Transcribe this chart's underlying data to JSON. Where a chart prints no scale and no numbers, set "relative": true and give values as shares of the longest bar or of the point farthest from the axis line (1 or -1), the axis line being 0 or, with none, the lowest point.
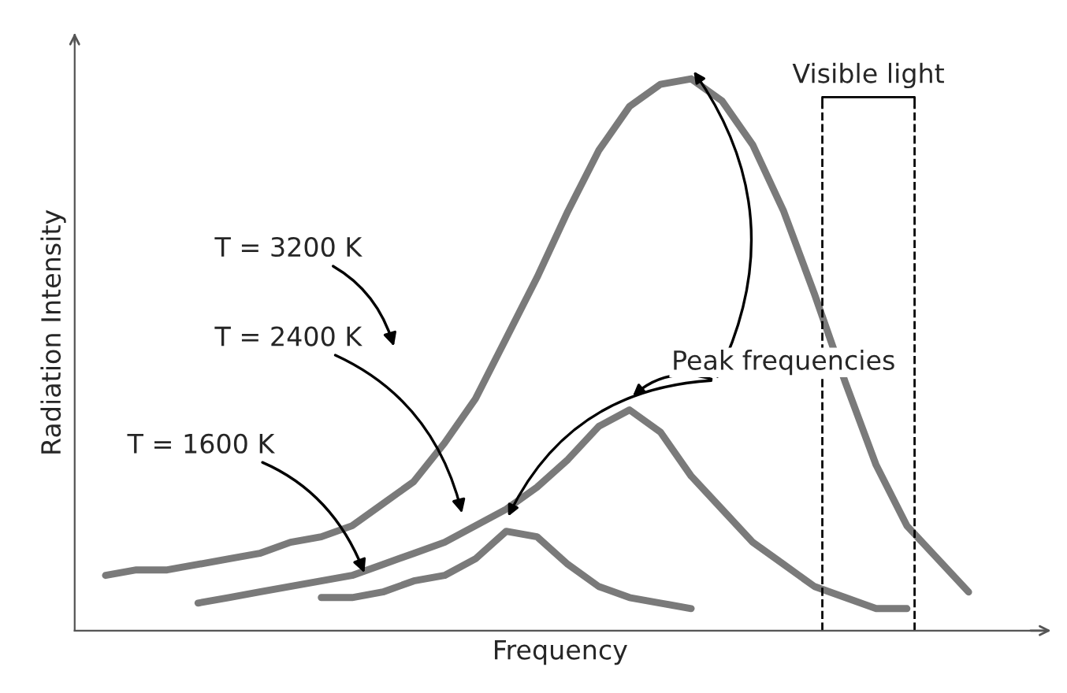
{
  "chart_data": {
    "type": "line",
    "relative": true,
    "xlabel": "Frequency",
    "ylabel": "Radiation Intensity",
    "categories": [
      null,
      null,
      null,
      null,
      null,
      null,
      null,
      null,
      null,
      null,
      null,
      null,
      null,
      null,
      null,
      null,
      null,
      null,
      null,
      null,
      null,
      null,
      null,
      null,
      null,
      null,
      null,
      null,
      null,
      null
    ],
    "series": [
      {
        "color": "#7a7a7a",
        "values": [
          0.1,
          0.11,
          0.11,
          0.12,
          0.13,
          0.14,
          0.16,
          0.17,
          0.19,
          0.23,
          0.27,
          0.34,
          0.42,
          0.53,
          0.64,
          0.76,
          0.87,
          0.95,
          0.99,
          1.0,
          0.96,
          0.88,
          0.76,
          0.61,
          0.45,
          0.3,
          0.19,
          0.13,
          0.07,
          null
        ]
      },
      {
        "color": "#7a7a7a",
        "values": [
          null,
          null,
          null,
          0.05,
          0.06,
          0.07,
          0.08,
          0.09,
          0.1,
          0.12,
          0.14,
          0.16,
          0.19,
          0.22,
          0.26,
          0.31,
          0.37,
          0.4,
          0.36,
          0.28,
          0.22,
          0.16,
          0.12,
          0.08,
          0.06,
          0.04,
          0.04,
          null,
          null,
          null
        ]
      },
      {
        "color": "#7a7a7a",
        "values": [
          null,
          null,
          null,
          null,
          null,
          null,
          null,
          0.06,
          0.06,
          0.07,
          0.09,
          0.1,
          0.13,
          0.18,
          0.17,
          0.12,
          0.08,
          0.06,
          0.05,
          0.04,
          null,
          null,
          null,
          null,
          null,
          null,
          null,
          null,
          null,
          null
        ]
      }
    ],
    "annotations": [
      "T = 3200 K",
      "T = 2400 K",
      "T = 1600 K",
      "Peak frequencies",
      "Visible light"
    ],
    "line_style": "solid"
  }
}
